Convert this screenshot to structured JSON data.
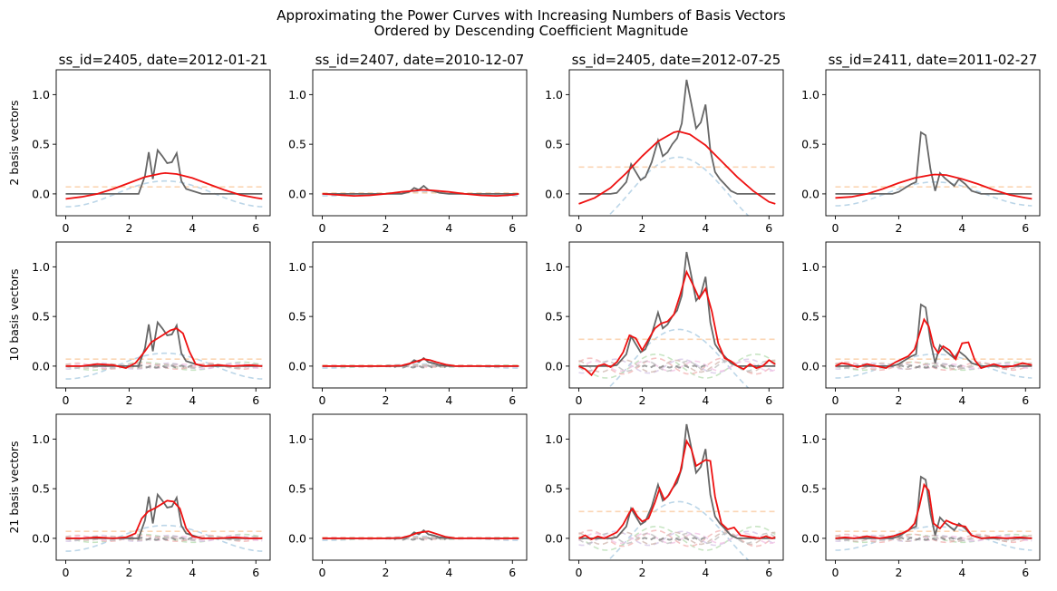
{
  "figure": {
    "title_line1": "Approximating the Power Curves with Increasing Numbers of Basis Vectors",
    "title_line2": "Ordered by Descending Coefficient Magnitude"
  },
  "colors": {
    "actual": "#666666",
    "approx": "#ee1111",
    "basis": [
      "#a6c8e0",
      "#f9c89b",
      "#b6dcb0",
      "#f2b0b0",
      "#d3c3e6",
      "#cfb5ad",
      "#f3c2e4",
      "#bcbcbc"
    ]
  },
  "chart_data": {
    "type": "line",
    "xlim": [
      -0.3,
      6.45
    ],
    "ylim": [
      -0.22,
      1.25
    ],
    "xticks": [
      0,
      2,
      4,
      6
    ],
    "yticks": [
      0.0,
      0.5,
      1.0
    ],
    "xtick_labels": [
      "0",
      "2",
      "4",
      "6"
    ],
    "ytick_labels": [
      "0.0",
      "0.5",
      "1.0"
    ],
    "grid": false,
    "row_labels": [
      "2 basis vectors",
      "10 basis vectors",
      "21 basis vectors"
    ],
    "columns": [
      {
        "title": "ss_id=2405, date=2012-01-21",
        "actual": {
          "x": [
            0,
            0.5,
            1.0,
            1.5,
            2.0,
            2.3,
            2.5,
            2.62,
            2.75,
            2.9,
            3.05,
            3.2,
            3.35,
            3.5,
            3.65,
            3.8,
            4.0,
            4.3,
            4.6,
            5.0,
            5.5,
            6.0,
            6.2
          ],
          "y": [
            0,
            0,
            0,
            0,
            0,
            0,
            0.18,
            0.42,
            0.15,
            0.44,
            0.38,
            0.31,
            0.32,
            0.41,
            0.13,
            0.05,
            0.03,
            0,
            0,
            0,
            0,
            0,
            0
          ]
        },
        "approx": [
          {
            "x": [
              0,
              0.5,
              1.0,
              1.5,
              2.0,
              2.5,
              3.0,
              3.14,
              3.5,
              4.0,
              4.5,
              5.0,
              5.5,
              6.0,
              6.2
            ],
            "y": [
              -0.05,
              -0.03,
              0.0,
              0.05,
              0.11,
              0.17,
              0.205,
              0.21,
              0.2,
              0.16,
              0.1,
              0.04,
              -0.01,
              -0.04,
              -0.05
            ]
          },
          {
            "x": [
              0,
              0.5,
              1.0,
              1.5,
              1.9,
              2.2,
              2.5,
              2.7,
              2.9,
              3.1,
              3.3,
              3.5,
              3.7,
              3.9,
              4.1,
              4.4,
              4.8,
              5.3,
              5.8,
              6.2
            ],
            "y": [
              0.0,
              0.0,
              0.02,
              0.01,
              -0.02,
              0.03,
              0.15,
              0.24,
              0.28,
              0.32,
              0.36,
              0.38,
              0.33,
              0.15,
              0.02,
              0.0,
              0.01,
              0.0,
              0.01,
              0.0
            ]
          },
          {
            "x": [
              0,
              0.5,
              1.0,
              1.5,
              1.9,
              2.2,
              2.4,
              2.6,
              2.8,
              3.0,
              3.2,
              3.4,
              3.6,
              3.8,
              4.0,
              4.3,
              4.8,
              5.3,
              5.8,
              6.2
            ],
            "y": [
              0.0,
              0.0,
              0.01,
              0.0,
              0.01,
              0.05,
              0.2,
              0.27,
              0.3,
              0.34,
              0.38,
              0.37,
              0.3,
              0.1,
              0.02,
              0.0,
              0.0,
              0.01,
              0.0,
              0.0
            ]
          }
        ],
        "basis_amps": [
          0.13,
          0.07,
          0.04,
          0.03,
          0.03,
          0.02,
          0.02,
          0.02
        ]
      },
      {
        "title": "ss_id=2407, date=2010-12-07",
        "actual": {
          "x": [
            0,
            0.5,
            1.0,
            1.5,
            2.0,
            2.5,
            2.75,
            2.9,
            3.05,
            3.2,
            3.35,
            3.5,
            3.7,
            4.0,
            4.5,
            5.0,
            5.5,
            6.0,
            6.2
          ],
          "y": [
            0,
            0,
            0,
            0,
            0,
            0,
            0.02,
            0.06,
            0.04,
            0.08,
            0.04,
            0.03,
            0.01,
            0,
            0,
            0,
            0,
            0,
            0
          ]
        },
        "approx": [
          {
            "x": [
              0,
              0.5,
              1.0,
              1.5,
              2.0,
              2.5,
              3.0,
              3.14,
              3.5,
              4.0,
              4.5,
              5.0,
              5.5,
              6.0,
              6.2
            ],
            "y": [
              0.0,
              -0.01,
              -0.02,
              -0.015,
              0.0,
              0.02,
              0.035,
              0.04,
              0.035,
              0.02,
              0.0,
              -0.015,
              -0.02,
              -0.01,
              0.0
            ]
          },
          {
            "x": [
              0,
              0.5,
              1.0,
              1.5,
              2.0,
              2.5,
              2.8,
              3.0,
              3.2,
              3.4,
              3.6,
              3.9,
              4.2,
              4.6,
              5.0,
              5.5,
              6.0,
              6.2
            ],
            "y": [
              0,
              0,
              0,
              0,
              0,
              0.005,
              0.03,
              0.05,
              0.07,
              0.06,
              0.04,
              0.015,
              0.0,
              0,
              0,
              0,
              0,
              0
            ]
          },
          {
            "x": [
              0,
              0.5,
              1.0,
              1.5,
              2.0,
              2.5,
              2.8,
              3.0,
              3.2,
              3.35,
              3.6,
              3.9,
              4.2,
              4.6,
              5.0,
              5.5,
              6.0,
              6.2
            ],
            "y": [
              0,
              0,
              0,
              0,
              0,
              0.005,
              0.03,
              0.055,
              0.065,
              0.07,
              0.045,
              0.015,
              0.0,
              0,
              0,
              0,
              0,
              0
            ]
          }
        ],
        "basis_amps": [
          0.02,
          0.01,
          0.01,
          0.01,
          0.005,
          0.005,
          0.005,
          0.005
        ]
      },
      {
        "title": "ss_id=2405, date=2012-07-25",
        "actual": {
          "x": [
            0,
            0.5,
            1.0,
            1.2,
            1.5,
            1.65,
            1.8,
            1.95,
            2.1,
            2.3,
            2.5,
            2.65,
            2.8,
            2.95,
            3.1,
            3.25,
            3.4,
            3.55,
            3.7,
            3.85,
            4.0,
            4.15,
            4.3,
            4.45,
            4.6,
            4.8,
            5.0,
            5.5,
            6.0,
            6.2
          ],
          "y": [
            0,
            0,
            0,
            0.01,
            0.12,
            0.3,
            0.22,
            0.14,
            0.17,
            0.32,
            0.54,
            0.38,
            0.42,
            0.5,
            0.56,
            0.71,
            1.15,
            0.91,
            0.66,
            0.72,
            0.9,
            0.44,
            0.22,
            0.15,
            0.1,
            0.03,
            0,
            0,
            0,
            0
          ]
        },
        "approx": [
          {
            "x": [
              0,
              0.5,
              1.0,
              1.5,
              2.0,
              2.5,
              3.0,
              3.14,
              3.5,
              4.0,
              4.5,
              5.0,
              5.5,
              6.0,
              6.2
            ],
            "y": [
              -0.1,
              -0.04,
              0.06,
              0.21,
              0.38,
              0.53,
              0.62,
              0.63,
              0.6,
              0.49,
              0.33,
              0.17,
              0.03,
              -0.08,
              -0.1
            ]
          },
          {
            "x": [
              0,
              0.2,
              0.4,
              0.6,
              0.8,
              1.0,
              1.2,
              1.4,
              1.6,
              1.8,
              2.0,
              2.2,
              2.4,
              2.6,
              2.8,
              3.0,
              3.2,
              3.4,
              3.6,
              3.8,
              4.0,
              4.2,
              4.4,
              4.6,
              4.8,
              5.0,
              5.2,
              5.4,
              5.6,
              5.8,
              6.0,
              6.2
            ],
            "y": [
              0.0,
              -0.03,
              -0.09,
              0.0,
              0.02,
              -0.01,
              0.04,
              0.14,
              0.31,
              0.28,
              0.16,
              0.27,
              0.38,
              0.43,
              0.45,
              0.52,
              0.72,
              0.95,
              0.82,
              0.68,
              0.78,
              0.55,
              0.23,
              0.08,
              0.05,
              0.0,
              -0.03,
              0.02,
              -0.02,
              0.0,
              0.06,
              0.02
            ]
          },
          {
            "x": [
              0,
              0.2,
              0.4,
              0.6,
              0.8,
              1.0,
              1.2,
              1.4,
              1.6,
              1.7,
              1.85,
              2.0,
              2.2,
              2.4,
              2.55,
              2.7,
              2.85,
              3.0,
              3.2,
              3.4,
              3.55,
              3.7,
              3.85,
              4.0,
              4.15,
              4.3,
              4.5,
              4.7,
              4.9,
              5.1,
              5.3,
              5.5,
              5.7,
              5.9,
              6.1,
              6.2
            ],
            "y": [
              0.0,
              0.03,
              -0.01,
              0.02,
              0.0,
              0.03,
              0.06,
              0.14,
              0.26,
              0.3,
              0.22,
              0.17,
              0.2,
              0.36,
              0.5,
              0.39,
              0.44,
              0.53,
              0.67,
              0.98,
              0.9,
              0.73,
              0.76,
              0.79,
              0.78,
              0.42,
              0.15,
              0.09,
              0.11,
              0.03,
              0.02,
              0.01,
              0.0,
              0.02,
              0.0,
              0.01
            ]
          }
        ],
        "basis_amps": [
          0.37,
          0.27,
          0.12,
          0.08,
          0.07,
          0.06,
          0.05,
          0.05
        ]
      },
      {
        "title": "ss_id=2411, date=2011-02-27",
        "actual": {
          "x": [
            0,
            0.5,
            1.0,
            1.5,
            1.8,
            2.0,
            2.2,
            2.4,
            2.55,
            2.7,
            2.85,
            3.0,
            3.15,
            3.3,
            3.45,
            3.6,
            3.75,
            3.9,
            4.1,
            4.3,
            4.6,
            5.0,
            5.5,
            6.0,
            6.2
          ],
          "y": [
            0,
            0,
            0,
            0,
            0,
            0.02,
            0.06,
            0.1,
            0.12,
            0.62,
            0.59,
            0.25,
            0.03,
            0.21,
            0.16,
            0.12,
            0.08,
            0.15,
            0.1,
            0.03,
            0,
            0,
            0,
            0,
            0
          ]
        },
        "approx": [
          {
            "x": [
              0,
              0.5,
              1.0,
              1.5,
              2.0,
              2.5,
              3.0,
              3.14,
              3.5,
              4.0,
              4.5,
              5.0,
              5.5,
              6.0,
              6.2
            ],
            "y": [
              -0.04,
              -0.03,
              0.0,
              0.05,
              0.11,
              0.16,
              0.19,
              0.195,
              0.19,
              0.15,
              0.1,
              0.04,
              -0.01,
              -0.04,
              -0.05
            ]
          },
          {
            "x": [
              0,
              0.2,
              0.4,
              0.7,
              1.0,
              1.3,
              1.6,
              1.9,
              2.1,
              2.3,
              2.5,
              2.65,
              2.8,
              2.95,
              3.1,
              3.25,
              3.4,
              3.6,
              3.8,
              4.0,
              4.2,
              4.4,
              4.6,
              4.8,
              5.0,
              5.3,
              5.6,
              5.9,
              6.2
            ],
            "y": [
              0.0,
              0.03,
              0.02,
              -0.01,
              0.02,
              0.0,
              -0.02,
              0.04,
              0.07,
              0.1,
              0.17,
              0.32,
              0.47,
              0.4,
              0.2,
              0.13,
              0.2,
              0.16,
              0.07,
              0.23,
              0.24,
              0.06,
              -0.02,
              0.0,
              0.02,
              -0.01,
              0.0,
              0.03,
              0.01
            ]
          },
          {
            "x": [
              0,
              0.3,
              0.6,
              1.0,
              1.4,
              1.8,
              2.1,
              2.3,
              2.5,
              2.65,
              2.8,
              2.95,
              3.1,
              3.3,
              3.5,
              3.7,
              3.9,
              4.1,
              4.3,
              4.6,
              5.0,
              5.4,
              5.8,
              6.2
            ],
            "y": [
              0.0,
              0.01,
              0.0,
              0.02,
              0.0,
              0.02,
              0.05,
              0.08,
              0.15,
              0.32,
              0.54,
              0.48,
              0.15,
              0.1,
              0.18,
              0.15,
              0.13,
              0.12,
              0.03,
              0.0,
              0.01,
              0.0,
              0.01,
              0.0
            ]
          }
        ],
        "basis_amps": [
          0.12,
          0.07,
          0.04,
          0.04,
          0.03,
          0.03,
          0.02,
          0.02
        ]
      }
    ]
  }
}
